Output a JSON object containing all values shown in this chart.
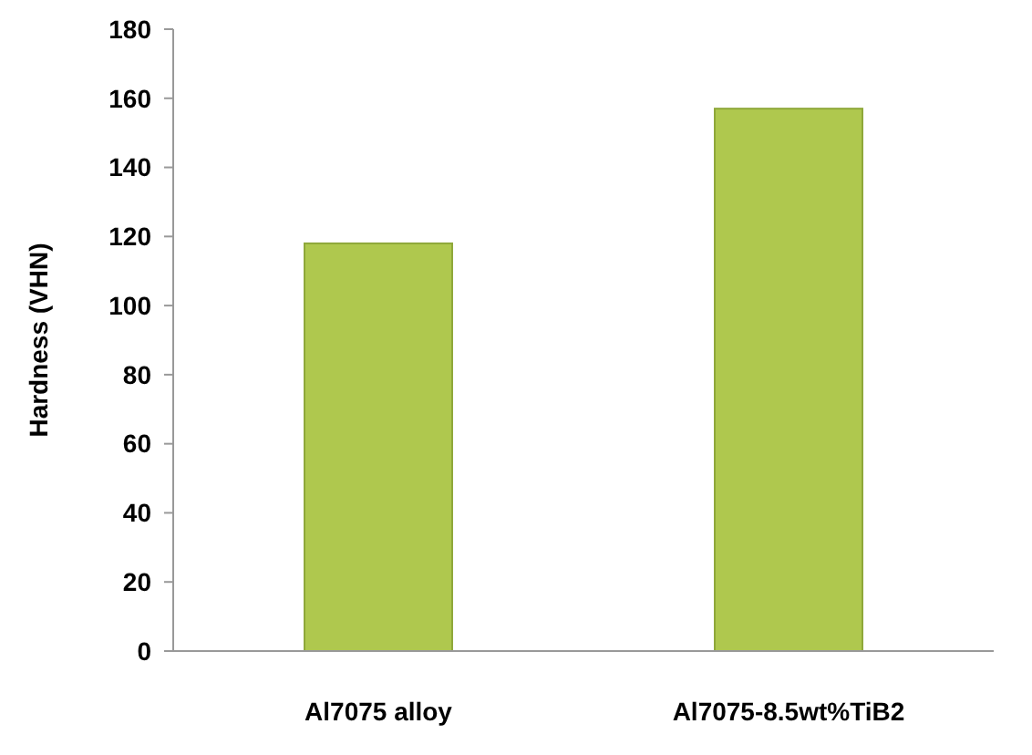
{
  "chart_data": {
    "type": "bar",
    "ylabel": "Hardness (VHN)",
    "categories": [
      "Al7075 alloy",
      "Al7075-8.5wt%TiB2"
    ],
    "values": [
      118,
      157
    ],
    "color": "#afc84e",
    "ylim": [
      0,
      180
    ],
    "yticks": [
      0,
      20,
      40,
      60,
      80,
      100,
      120,
      140,
      160,
      180
    ],
    "grid": false
  }
}
